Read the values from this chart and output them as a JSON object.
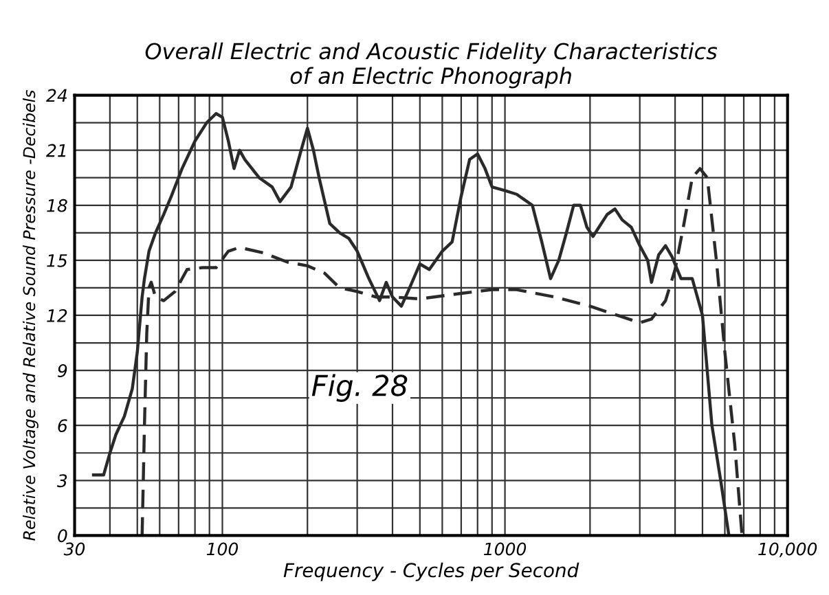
{
  "chart_data": {
    "type": "line",
    "title": "Overall Electric and Acoustic Fidelity Characteristics\nof an Electric Phonograph",
    "xlabel": "Frequency - Cycles per Second",
    "ylabel": "Relative Voltage and Relative Sound Pressure -Decibels",
    "log": "x",
    "grid": true,
    "xlim": [
      30,
      10000
    ],
    "ylim": [
      0,
      24
    ],
    "xticks": [
      {
        "value": 30,
        "label": "30"
      },
      {
        "value": 40,
        "label": null
      },
      {
        "value": 50,
        "label": null
      },
      {
        "value": 60,
        "label": null
      },
      {
        "value": 70,
        "label": null
      },
      {
        "value": 80,
        "label": null
      },
      {
        "value": 90,
        "label": null
      },
      {
        "value": 100,
        "label": "100"
      },
      {
        "value": 200,
        "label": null
      },
      {
        "value": 300,
        "label": null
      },
      {
        "value": 400,
        "label": null
      },
      {
        "value": 500,
        "label": null
      },
      {
        "value": 600,
        "label": null
      },
      {
        "value": 700,
        "label": null
      },
      {
        "value": 800,
        "label": null
      },
      {
        "value": 900,
        "label": null
      },
      {
        "value": 1000,
        "label": "1000"
      },
      {
        "value": 2000,
        "label": null
      },
      {
        "value": 3000,
        "label": null
      },
      {
        "value": 4000,
        "label": null
      },
      {
        "value": 5000,
        "label": null
      },
      {
        "value": 6000,
        "label": null
      },
      {
        "value": 7000,
        "label": null
      },
      {
        "value": 8000,
        "label": null
      },
      {
        "value": 9000,
        "label": null
      },
      {
        "value": 10000,
        "label": "10,000"
      }
    ],
    "yticks": [
      0,
      {
        "value": 1.5,
        "label": null
      },
      3,
      {
        "value": 4.5,
        "label": null
      },
      6,
      {
        "value": 7.5,
        "label": null
      },
      9,
      {
        "value": 10.5,
        "label": null
      },
      12,
      {
        "value": 13.5,
        "label": null
      },
      15,
      {
        "value": 16.5,
        "label": null
      },
      18,
      {
        "value": 19.5,
        "label": null
      },
      21,
      {
        "value": 22.5,
        "label": null
      },
      24
    ],
    "annotations": [
      "Fig. 28"
    ],
    "series": [
      {
        "color": "#2a2a2a",
        "line_style": "solid",
        "x": [
          35,
          38,
          40,
          42,
          45,
          48,
          50,
          52,
          53,
          55,
          58,
          62,
          66,
          72,
          80,
          88,
          95,
          100,
          105,
          110,
          115,
          120,
          135,
          150,
          160,
          175,
          190,
          200,
          210,
          220,
          240,
          260,
          280,
          300,
          330,
          360,
          380,
          400,
          430,
          460,
          500,
          540,
          600,
          650,
          700,
          750,
          800,
          850,
          900,
          1000,
          1100,
          1250,
          1350,
          1450,
          1550,
          1650,
          1750,
          1850,
          1950,
          2050,
          2150,
          2300,
          2450,
          2600,
          2800,
          3000,
          3200,
          3300,
          3500,
          3700,
          3900,
          4200,
          4600,
          5000,
          5400,
          5800,
          6200
        ],
        "values": [
          3.3,
          3.3,
          4.5,
          5.5,
          6.5,
          8,
          10,
          13,
          14,
          15.5,
          16.5,
          17.5,
          18.5,
          20,
          21.5,
          22.5,
          23,
          22.8,
          21.5,
          20,
          21,
          20.5,
          19.5,
          19,
          18.2,
          19,
          21,
          22.2,
          21,
          19.5,
          17,
          16.5,
          16.2,
          15.5,
          14,
          12.8,
          13.8,
          13,
          12.5,
          13.5,
          14.8,
          14.5,
          15.5,
          16,
          18.5,
          20.5,
          20.8,
          20,
          19,
          18.8,
          18.6,
          18,
          16,
          14,
          15,
          16.5,
          18,
          18,
          16.8,
          16.3,
          16.8,
          17.5,
          17.8,
          17.2,
          16.8,
          15.8,
          15,
          13.8,
          15.3,
          15.8,
          15.2,
          14,
          14,
          12,
          6,
          3,
          0
        ]
      },
      {
        "color": "#2a2a2a",
        "line_style": "dashed",
        "x": [
          52,
          53,
          54,
          55,
          56,
          58,
          62,
          68,
          75,
          85,
          95,
          105,
          115,
          140,
          170,
          200,
          230,
          260,
          300,
          350,
          400,
          500,
          700,
          900,
          1100,
          1500,
          2000,
          2500,
          3000,
          3300,
          3700,
          4000,
          4300,
          4600,
          4900,
          5200,
          5600,
          6000,
          6500,
          6900
        ],
        "values": [
          0,
          6,
          11,
          13.5,
          13.8,
          13,
          12.8,
          13.3,
          14.5,
          14.6,
          14.6,
          15.5,
          15.7,
          15.4,
          14.9,
          14.7,
          14.3,
          13.5,
          13.3,
          13,
          13,
          12.9,
          13.2,
          13.4,
          13.4,
          13,
          12.5,
          12,
          11.6,
          11.8,
          12.8,
          14.5,
          17,
          19.5,
          20,
          19.5,
          15,
          10,
          5,
          0
        ]
      }
    ]
  }
}
